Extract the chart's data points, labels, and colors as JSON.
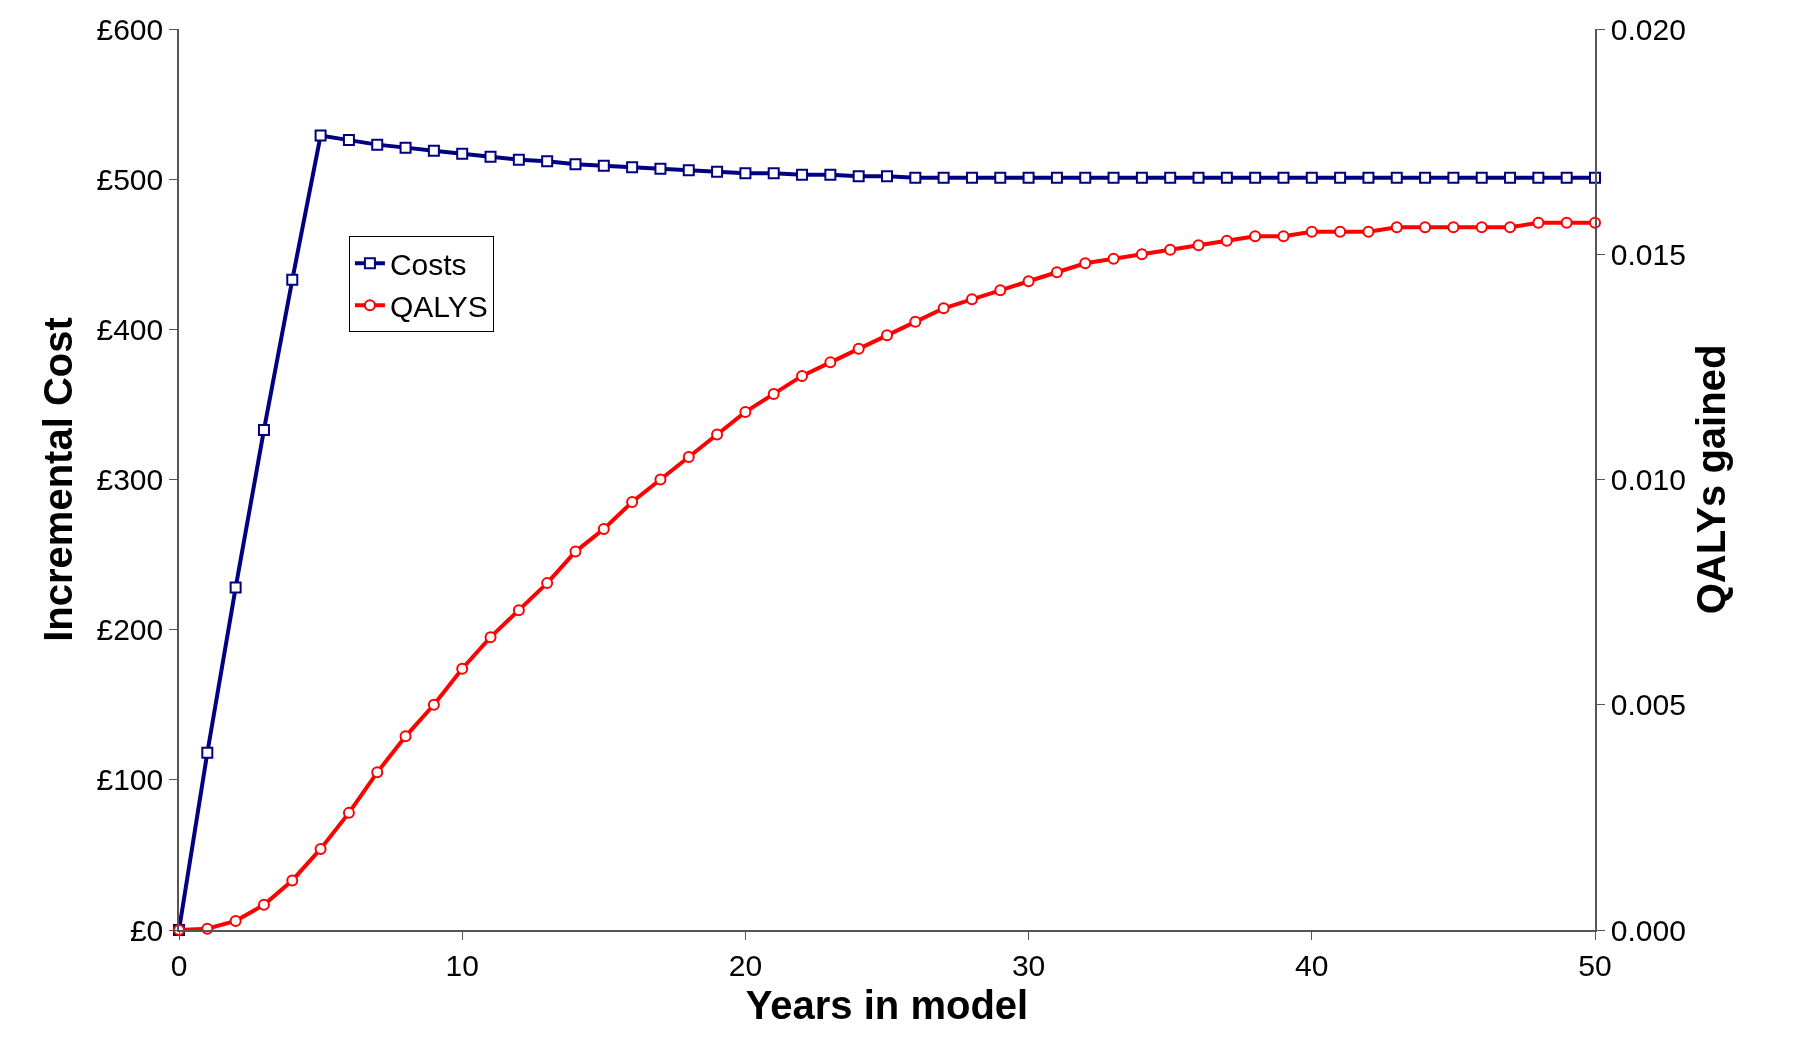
{
  "chart_data": {
    "type": "line",
    "xlabel": "Years in model",
    "ylabel": "Incremental Cost",
    "y2label": "QALYs gained",
    "x": [
      0,
      1,
      2,
      3,
      4,
      5,
      6,
      7,
      8,
      9,
      10,
      11,
      12,
      13,
      14,
      15,
      16,
      17,
      18,
      19,
      20,
      21,
      22,
      23,
      24,
      25,
      26,
      27,
      28,
      29,
      30,
      31,
      32,
      33,
      34,
      35,
      36,
      37,
      38,
      39,
      40,
      41,
      42,
      43,
      44,
      45,
      46,
      47,
      48,
      49,
      50
    ],
    "series": [
      {
        "name": "Costs",
        "color": "#000080",
        "marker": "square",
        "values": [
          0,
          118,
          228,
          333,
          433,
          529,
          526,
          523,
          521,
          519,
          517,
          515,
          513,
          512,
          510,
          509,
          508,
          507,
          506,
          505,
          504,
          504,
          503,
          503,
          502,
          502,
          501,
          501,
          501,
          501,
          501,
          501,
          501,
          501,
          501,
          501,
          501,
          501,
          501,
          501,
          501,
          501,
          501,
          501,
          501,
          501,
          501,
          501,
          501,
          501,
          501
        ]
      },
      {
        "name": "QALYS",
        "color": "#ff0000",
        "marker": "circle",
        "axis": "y2",
        "values": [
          0,
          3e-05,
          0.0002,
          0.00056,
          0.0011,
          0.0018,
          0.0026,
          0.0035,
          0.0043,
          0.005,
          0.0058,
          0.0065,
          0.0071,
          0.0077,
          0.0084,
          0.0089,
          0.0095,
          0.01,
          0.0105,
          0.011,
          0.0115,
          0.0119,
          0.0123,
          0.0126,
          0.0129,
          0.0132,
          0.0135,
          0.0138,
          0.014,
          0.0142,
          0.0144,
          0.0146,
          0.0148,
          0.0149,
          0.015,
          0.0151,
          0.0152,
          0.0153,
          0.0154,
          0.0154,
          0.0155,
          0.0155,
          0.0155,
          0.0156,
          0.0156,
          0.0156,
          0.0156,
          0.0156,
          0.0157,
          0.0157,
          0.0157
        ]
      }
    ],
    "xlim": [
      0,
      50
    ],
    "xticks": [
      0,
      10,
      20,
      30,
      40,
      50
    ],
    "ylim": [
      0,
      600
    ],
    "yticks": [
      {
        "value": 0,
        "label": "£0"
      },
      {
        "value": 100,
        "label": "£100"
      },
      {
        "value": 200,
        "label": "£200"
      },
      {
        "value": 300,
        "label": "£300"
      },
      {
        "value": 400,
        "label": "£400"
      },
      {
        "value": 500,
        "label": "£500"
      },
      {
        "value": 600,
        "label": "£600"
      }
    ],
    "y2lim": [
      0,
      0.02
    ],
    "y2ticks": [
      {
        "value": 0,
        "label": "0.000"
      },
      {
        "value": 0.005,
        "label": "0.005"
      },
      {
        "value": 0.01,
        "label": "0.010"
      },
      {
        "value": 0.015,
        "label": "0.015"
      },
      {
        "value": 0.02,
        "label": "0.020"
      }
    ],
    "grid": false,
    "legend": "top left",
    "line_style": "solid"
  }
}
